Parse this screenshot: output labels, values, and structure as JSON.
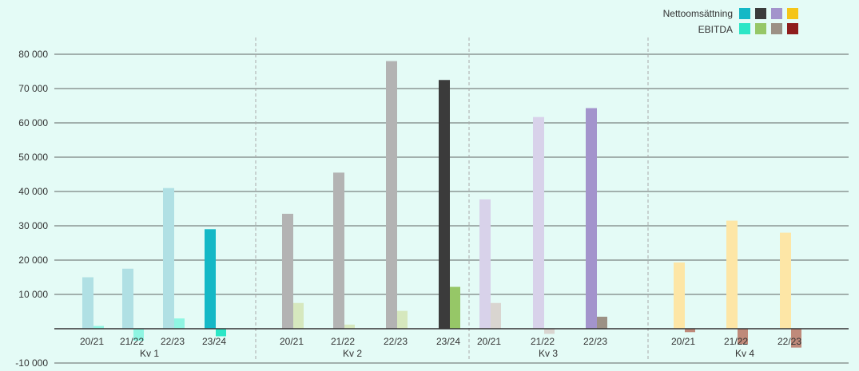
{
  "legend": {
    "nettoomsattning_label": "Nettoomsättning",
    "ebitda_label": "EBITDA",
    "nettoomsattning_colors": [
      "#14b8c6",
      "#3b3b3b",
      "#a394cc",
      "#f5c518"
    ],
    "ebitda_colors": [
      "#2ce6c6",
      "#96c767",
      "#9c9185",
      "#8e1c1c"
    ]
  },
  "chart_data": {
    "type": "bar",
    "title": "",
    "xlabel": "",
    "ylabel": "",
    "ylim": [
      -10000,
      80000
    ],
    "yticks": [
      -10000,
      10000,
      20000,
      30000,
      40000,
      50000,
      60000,
      70000,
      80000
    ],
    "ytick_labels": [
      "-10 000",
      "10 000",
      "20 000",
      "30 000",
      "40 000",
      "50 000",
      "60 000",
      "70 000",
      "80 000"
    ],
    "grid": true,
    "legend_position": "top-right",
    "quarters": [
      {
        "label": "Kv 1",
        "bars": [
          {
            "period": "20/21",
            "nettoomsattning": 15000,
            "ebitda": 800,
            "highlight": false
          },
          {
            "period": "21/22",
            "nettoomsattning": 17500,
            "ebitda": -3500,
            "highlight": false
          },
          {
            "period": "22/23",
            "nettoomsattning": 41000,
            "ebitda": 3000,
            "highlight": false
          },
          {
            "period": "23/24",
            "nettoomsattning": 29000,
            "ebitda": -2200,
            "highlight": true
          }
        ],
        "netto_color": "#14b8c6",
        "netto_faded": "#b0e0e4",
        "ebitda_color": "#2ce6c6",
        "ebitda_faded": "#8ff5e2"
      },
      {
        "label": "Kv 2",
        "bars": [
          {
            "period": "20/21",
            "nettoomsattning": 33500,
            "ebitda": 7500,
            "highlight": false
          },
          {
            "period": "21/22",
            "nettoomsattning": 45500,
            "ebitda": 1200,
            "highlight": false
          },
          {
            "period": "22/23",
            "nettoomsattning": 78000,
            "ebitda": 5200,
            "highlight": false
          },
          {
            "period": "23/24",
            "nettoomsattning": 72500,
            "ebitda": 12200,
            "highlight": true
          }
        ],
        "netto_color": "#3b3b3b",
        "netto_faded": "#b3b3b3",
        "ebitda_color": "#96c767",
        "ebitda_faded": "#d6e8be"
      },
      {
        "label": "Kv 3",
        "bars": [
          {
            "period": "20/21",
            "nettoomsattning": 37700,
            "ebitda": 7500,
            "highlight": false
          },
          {
            "period": "21/22",
            "nettoomsattning": 61700,
            "ebitda": -1500,
            "highlight": false
          },
          {
            "period": "22/23",
            "nettoomsattning": 64300,
            "ebitda": 3500,
            "highlight": true
          }
        ],
        "netto_color": "#a394cc",
        "netto_faded": "#d8d2ea",
        "ebitda_color": "#9c9185",
        "ebitda_faded": "#d9d5d0"
      },
      {
        "label": "Kv 4",
        "bars": [
          {
            "period": "20/21",
            "nettoomsattning": 19300,
            "ebitda": -1000,
            "highlight": false
          },
          {
            "period": "21/22",
            "nettoomsattning": 31500,
            "ebitda": -4500,
            "highlight": false
          },
          {
            "period": "22/23",
            "nettoomsattning": 28000,
            "ebitda": -5500,
            "highlight": false
          }
        ],
        "netto_color": "#f5c518",
        "netto_faded": "#fde6a6",
        "ebitda_color": "#8e1c1c",
        "ebitda_faded": "#bf8a7a"
      }
    ]
  }
}
